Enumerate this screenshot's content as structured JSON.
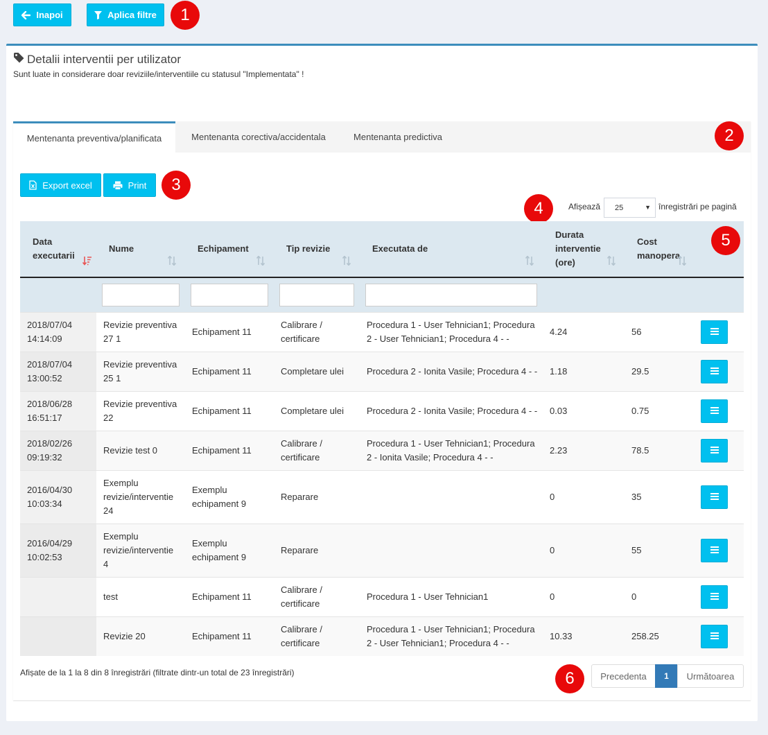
{
  "toolbar": {
    "back_label": "Inapoi",
    "apply_filters_label": "Aplica filtre"
  },
  "markers": [
    "1",
    "2",
    "3",
    "4",
    "5",
    "6"
  ],
  "panel": {
    "title": "Detalii interventii per utilizator",
    "subtitle": "Sunt luate in considerare doar reviziile/interventiile cu statusul \"Implementata\" !"
  },
  "tabs": [
    {
      "label": "Mentenanta preventiva/planificata",
      "active": true
    },
    {
      "label": "Mentenanta corectiva/accidentala",
      "active": false
    },
    {
      "label": "Mentenanta predictiva",
      "active": false
    }
  ],
  "actions": {
    "export_label": "Export excel",
    "print_label": "Print"
  },
  "page_length": {
    "prefix": "Afișează",
    "value": "25",
    "suffix": "înregistrări pe pagină"
  },
  "table": {
    "columns": [
      {
        "l1": "Data",
        "l2": "executarii",
        "l3": ""
      },
      {
        "l1": "",
        "l2": "Nume",
        "l3": ""
      },
      {
        "l1": "",
        "l2": "Echipament",
        "l3": ""
      },
      {
        "l1": "",
        "l2": "Tip revizie",
        "l3": ""
      },
      {
        "l1": "",
        "l2": "Executata de",
        "l3": ""
      },
      {
        "l1": "Durata",
        "l2": "interventie",
        "l3": "(ore)"
      },
      {
        "l1": "Cost",
        "l2": "manopera",
        "l3": ""
      },
      {
        "l1": "",
        "l2": "",
        "l3": ""
      }
    ],
    "rows": [
      {
        "date_l1": "2018/07/04",
        "date_l2": "14:14:09",
        "name_l1": "Revizie preventiva",
        "name_l2": "27 1",
        "name_l3": "",
        "equip_l1": "Echipament 11",
        "equip_l2": "",
        "type_l1": "Calibrare /",
        "type_l2": "certificare",
        "exec_l1": "Procedura 1 - User Tehnician1; Procedura",
        "exec_l2": "2 - User Tehnician1; Procedura 4 - -",
        "duration": "4.24",
        "cost": "56"
      },
      {
        "date_l1": "2018/07/04",
        "date_l2": "13:00:52",
        "name_l1": "Revizie preventiva",
        "name_l2": "25 1",
        "name_l3": "",
        "equip_l1": "Echipament 11",
        "equip_l2": "",
        "type_l1": "Completare ulei",
        "type_l2": "",
        "exec_l1": "Procedura 2 - Ionita Vasile; Procedura 4 - -",
        "exec_l2": "",
        "duration": "1.18",
        "cost": "29.5"
      },
      {
        "date_l1": "2018/06/28",
        "date_l2": "16:51:17",
        "name_l1": "Revizie preventiva",
        "name_l2": "22",
        "name_l3": "",
        "equip_l1": "Echipament 11",
        "equip_l2": "",
        "type_l1": "Completare ulei",
        "type_l2": "",
        "exec_l1": "Procedura 2 - Ionita Vasile; Procedura 4 - -",
        "exec_l2": "",
        "duration": "0.03",
        "cost": "0.75"
      },
      {
        "date_l1": "2018/02/26",
        "date_l2": "09:19:32",
        "name_l1": "Revizie test 0",
        "name_l2": "",
        "name_l3": "",
        "equip_l1": "Echipament 11",
        "equip_l2": "",
        "type_l1": "Calibrare /",
        "type_l2": "certificare",
        "exec_l1": "Procedura 1 - User Tehnician1; Procedura",
        "exec_l2": "2 - Ionita Vasile; Procedura 4 - -",
        "duration": "2.23",
        "cost": "78.5"
      },
      {
        "date_l1": "2016/04/30",
        "date_l2": "10:03:34",
        "name_l1": "Exemplu",
        "name_l2": "revizie/interventie",
        "name_l3": "24",
        "equip_l1": "Exemplu",
        "equip_l2": "echipament 9",
        "type_l1": "Reparare",
        "type_l2": "",
        "exec_l1": "",
        "exec_l2": "",
        "duration": "0",
        "cost": "35"
      },
      {
        "date_l1": "2016/04/29",
        "date_l2": "10:02:53",
        "name_l1": "Exemplu",
        "name_l2": "revizie/interventie",
        "name_l3": "4",
        "equip_l1": "Exemplu",
        "equip_l2": "echipament 9",
        "type_l1": "Reparare",
        "type_l2": "",
        "exec_l1": "",
        "exec_l2": "",
        "duration": "0",
        "cost": "55"
      },
      {
        "date_l1": "",
        "date_l2": "",
        "name_l1": "test",
        "name_l2": "",
        "name_l3": "",
        "equip_l1": "Echipament 11",
        "equip_l2": "",
        "type_l1": "Calibrare /",
        "type_l2": "certificare",
        "exec_l1": "Procedura 1 - User Tehnician1",
        "exec_l2": "",
        "duration": "0",
        "cost": "0"
      },
      {
        "date_l1": "",
        "date_l2": "",
        "name_l1": "Revizie 20",
        "name_l2": "",
        "name_l3": "",
        "equip_l1": "Echipament 11",
        "equip_l2": "",
        "type_l1": "Calibrare /",
        "type_l2": "certificare",
        "exec_l1": "Procedura 1 - User Tehnician1; Procedura",
        "exec_l2": "2 - User Tehnician1; Procedura 4 - -",
        "duration": "10.33",
        "cost": "258.25"
      }
    ]
  },
  "footer": {
    "info": "Afișate de la 1 la 8 din 8 înregistrări (filtrate dintr-un total de 23 înregistrări)",
    "prev_label": "Precedenta",
    "current_page": "1",
    "next_label": "Următoarea"
  },
  "colors": {
    "accent": "#00c0ef",
    "box_border": "#3c8dbc",
    "marker": "#e8090a",
    "header_bg": "#dce8f0",
    "page_active": "#337ab7",
    "sort_active": "#e85555"
  }
}
